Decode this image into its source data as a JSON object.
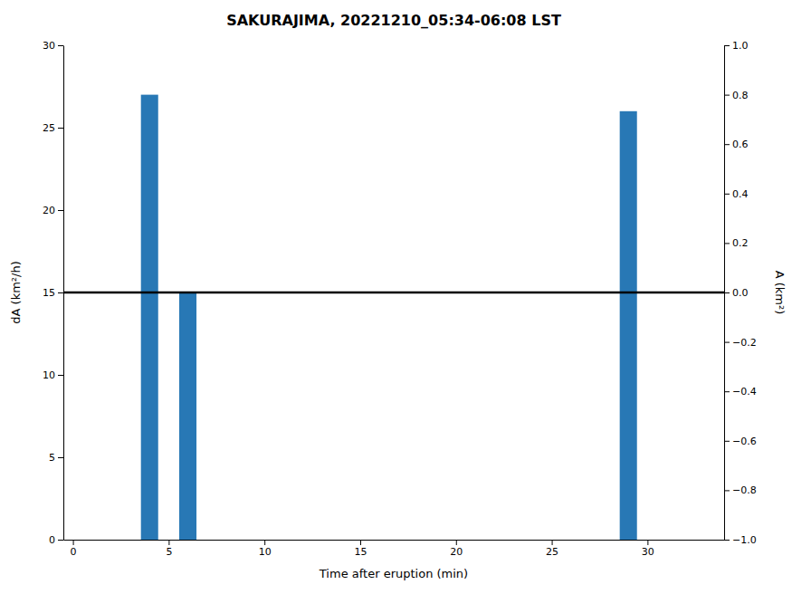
{
  "chart_data": {
    "type": "bar",
    "title": "SAKURAJIMA, 20221210_05:34-06:08 LST",
    "xlabel": "Time after eruption (min)",
    "ylabel": "dA (km²/h)",
    "y2label": "A (km²)",
    "x": [
      4,
      6,
      29
    ],
    "values": [
      27,
      15,
      26
    ],
    "color": "#2878b5",
    "reference_line": {
      "value": 15,
      "color": "black"
    },
    "xlim": [
      -0.5,
      34
    ],
    "xticks": [
      0,
      5,
      10,
      15,
      20,
      25,
      30
    ],
    "ylim": [
      0,
      30
    ],
    "yticks": [
      0,
      5,
      10,
      15,
      20,
      25,
      30
    ],
    "y2lim": [
      -1,
      1
    ],
    "y2ticks": [
      {
        "value": -1.0,
        "label": "−1.0"
      },
      {
        "value": -0.8,
        "label": "−0.8"
      },
      {
        "value": -0.6,
        "label": "−0.6"
      },
      {
        "value": -0.4,
        "label": "−0.4"
      },
      {
        "value": -0.2,
        "label": "−0.2"
      },
      {
        "value": 0,
        "label": "0.0"
      },
      0.2,
      0.4,
      0.6,
      0.8,
      {
        "value": 1,
        "label": "1.0"
      }
    ],
    "grid": false
  }
}
